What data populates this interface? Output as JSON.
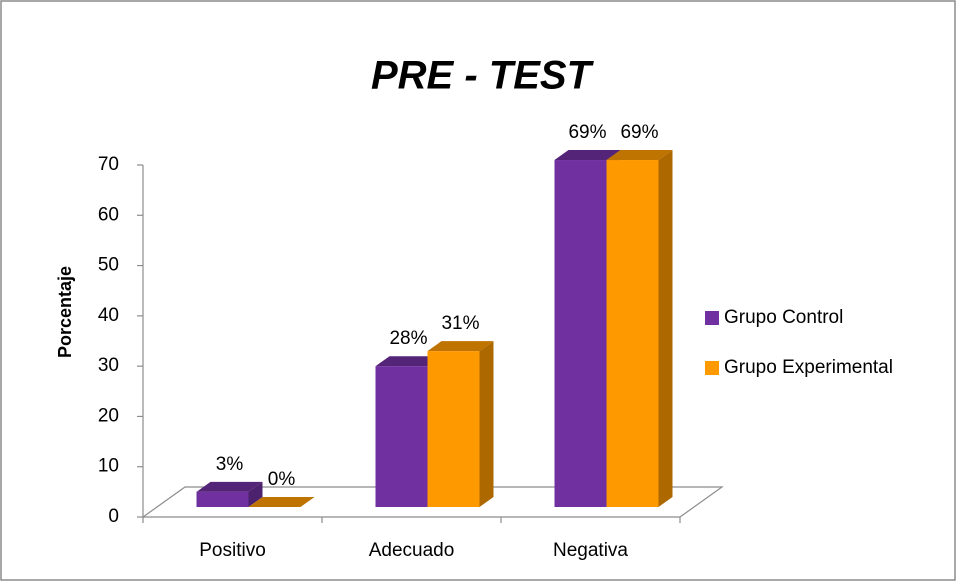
{
  "chart_data": {
    "type": "bar3d",
    "title": "PRE - TEST",
    "y_label": "Porcentaje",
    "categories": [
      "Positivo",
      "Adecuado",
      "Negativa"
    ],
    "series": [
      {
        "name": "Grupo Control",
        "color": "#7030a0",
        "values": [
          3,
          28,
          69
        ],
        "value_labels": [
          "3%",
          "28%",
          "69%"
        ]
      },
      {
        "name": "Grupo Experimental",
        "color": "#ff9900",
        "values": [
          0,
          31,
          69
        ],
        "value_labels": [
          "0%",
          "31%",
          "69%"
        ]
      }
    ],
    "ylim": [
      0,
      70
    ],
    "yticks": [
      0,
      10,
      20,
      30,
      40,
      50,
      60,
      70
    ],
    "legend": "right"
  }
}
